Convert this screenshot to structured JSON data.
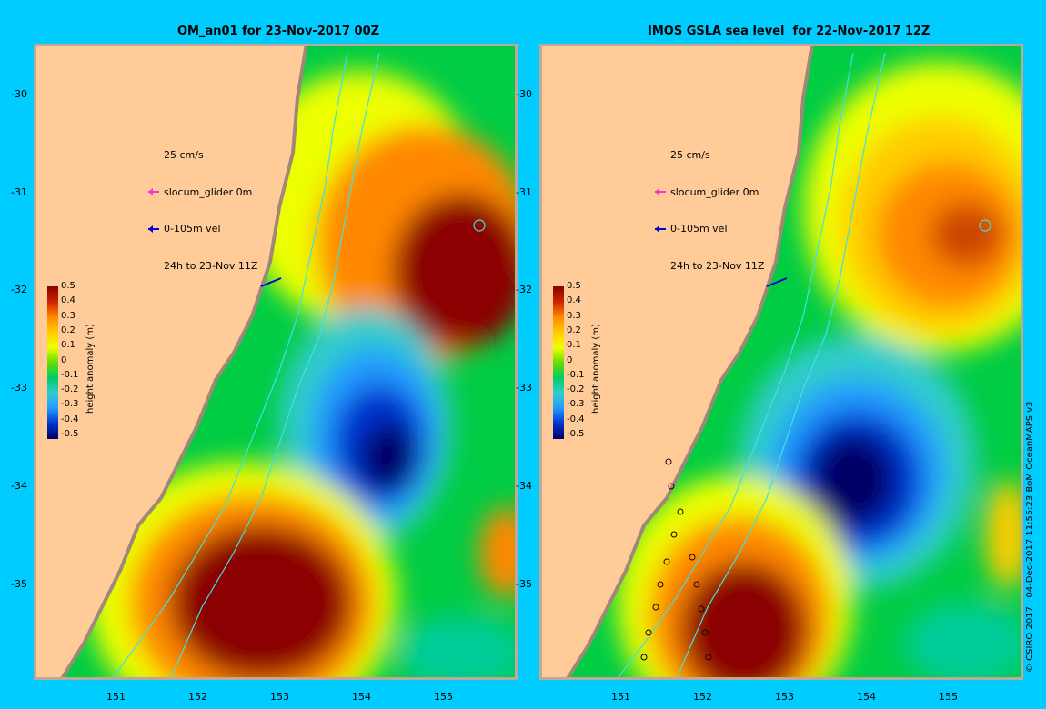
{
  "colors": {
    "background": "#00ccff",
    "land": "#ffcc99",
    "coast_shading": "#a08878",
    "contour": "#40e0e8",
    "glider_arrow": "#ff33cc",
    "velocity_arrow": "#0000cc"
  },
  "colorbar": {
    "title": "height anomaly (m)",
    "labels": [
      "0.5",
      "0.4",
      "0.3",
      "0.2",
      "0.1",
      "0",
      "-0.1",
      "-0.2",
      "-0.3",
      "-0.4",
      "-0.5"
    ],
    "stops": [
      "#8b0000",
      "#cc2200",
      "#ff8800",
      "#ffcc00",
      "#eeff00",
      "#66dd00",
      "#00cc66",
      "#33cccc",
      "#2299ff",
      "#0033cc",
      "#000066"
    ]
  },
  "legend": {
    "scale": "25 cm/s",
    "glider": "slocum_glider 0m",
    "velocity": "0-105m vel",
    "period": "24h to 23-Nov 11Z"
  },
  "axes": {
    "x_ticks": [
      "151",
      "152",
      "153",
      "154",
      "155"
    ],
    "y_ticks": [
      "-30",
      "-31",
      "-32",
      "-33",
      "-34",
      "-35"
    ]
  },
  "panels": [
    {
      "title": "OM_an01 for 23-Nov-2017 00Z"
    },
    {
      "title": "IMOS GSLA sea level  for 22-Nov-2017 12Z"
    }
  ],
  "copyright": "© CSIRO 2017   04-Dec-2017 11:55:23 BoM OceanMAPS v3"
}
